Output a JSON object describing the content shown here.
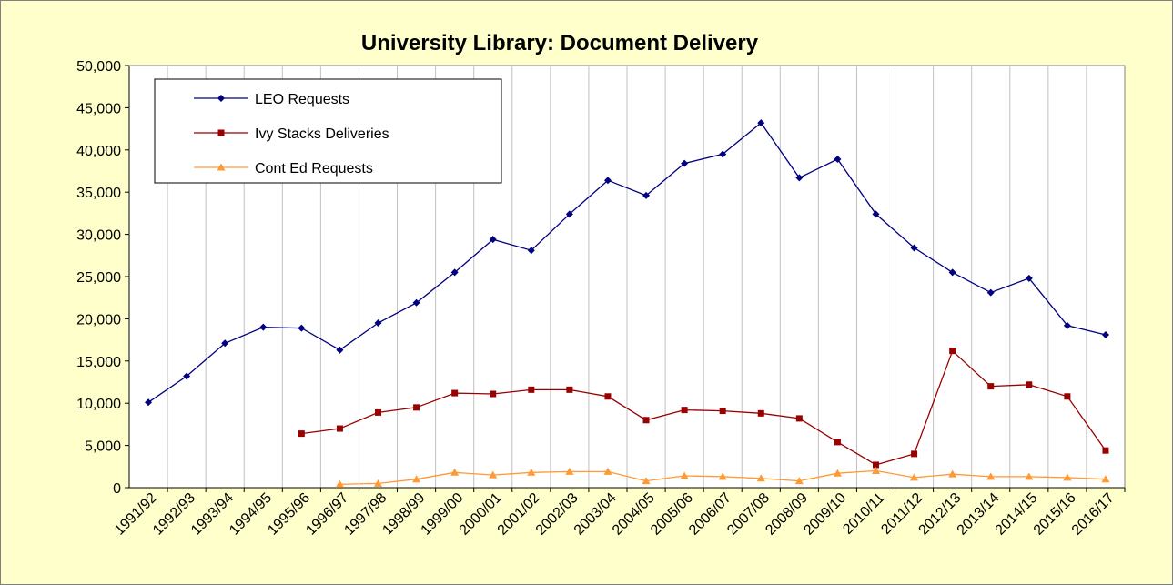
{
  "chart_data": {
    "type": "line",
    "title": "University Library:  Document Delivery",
    "categories": [
      "1991/92",
      "1992/93",
      "1993/94",
      "1994/95",
      "1995/96",
      "1996/97",
      "1997/98",
      "1998/99",
      "1999/00",
      "2000/01",
      "2001/02",
      "2002/03",
      "2003/04",
      "2004/05",
      "2005/06",
      "2006/07",
      "2007/08",
      "2008/09",
      "2009/10",
      "2010/11",
      "2011/12",
      "2012/13",
      "2013/14",
      "2014/15",
      "2015/16",
      "2016/17"
    ],
    "series": [
      {
        "name": "LEO Requests",
        "color": "#000080",
        "marker": "diamond",
        "values": [
          10100,
          13200,
          17100,
          19000,
          18900,
          16300,
          19500,
          21900,
          25500,
          29400,
          28100,
          32400,
          36400,
          34600,
          38400,
          39500,
          43200,
          36700,
          38900,
          32400,
          28400,
          25500,
          23100,
          24800,
          19200,
          18100
        ]
      },
      {
        "name": "Ivy Stacks Deliveries",
        "color": "#990000",
        "marker": "square",
        "values": [
          null,
          null,
          null,
          null,
          6400,
          7000,
          8900,
          9500,
          11200,
          11100,
          11600,
          11600,
          10800,
          8000,
          9200,
          9100,
          8800,
          8200,
          5400,
          2700,
          4000,
          16200,
          12000,
          12200,
          10800,
          4400
        ]
      },
      {
        "name": "Cont Ed Requests",
        "color": "#ff9933",
        "marker": "triangle",
        "values": [
          null,
          null,
          null,
          null,
          null,
          400,
          500,
          1000,
          1800,
          1500,
          1800,
          1900,
          1900,
          800,
          1400,
          1300,
          1100,
          800,
          1700,
          2000,
          1200,
          1600,
          1300,
          1300,
          1200,
          1000
        ]
      }
    ],
    "ylim": [
      0,
      50000
    ],
    "yticks": [
      0,
      {
        "value": 5000,
        "label": "5,000"
      },
      {
        "value": 10000,
        "label": "10,000"
      },
      {
        "value": 15000,
        "label": "15,000"
      },
      {
        "value": 20000,
        "label": "20,000"
      },
      {
        "value": 25000,
        "label": "25,000"
      },
      {
        "value": 30000,
        "label": "30,000"
      },
      {
        "value": 35000,
        "label": "35,000"
      },
      {
        "value": 40000,
        "label": "40,000"
      },
      {
        "value": 45000,
        "label": "45,000"
      },
      {
        "value": 50000,
        "label": "50,000"
      }
    ],
    "x_grid": true,
    "legend": "upper left"
  }
}
